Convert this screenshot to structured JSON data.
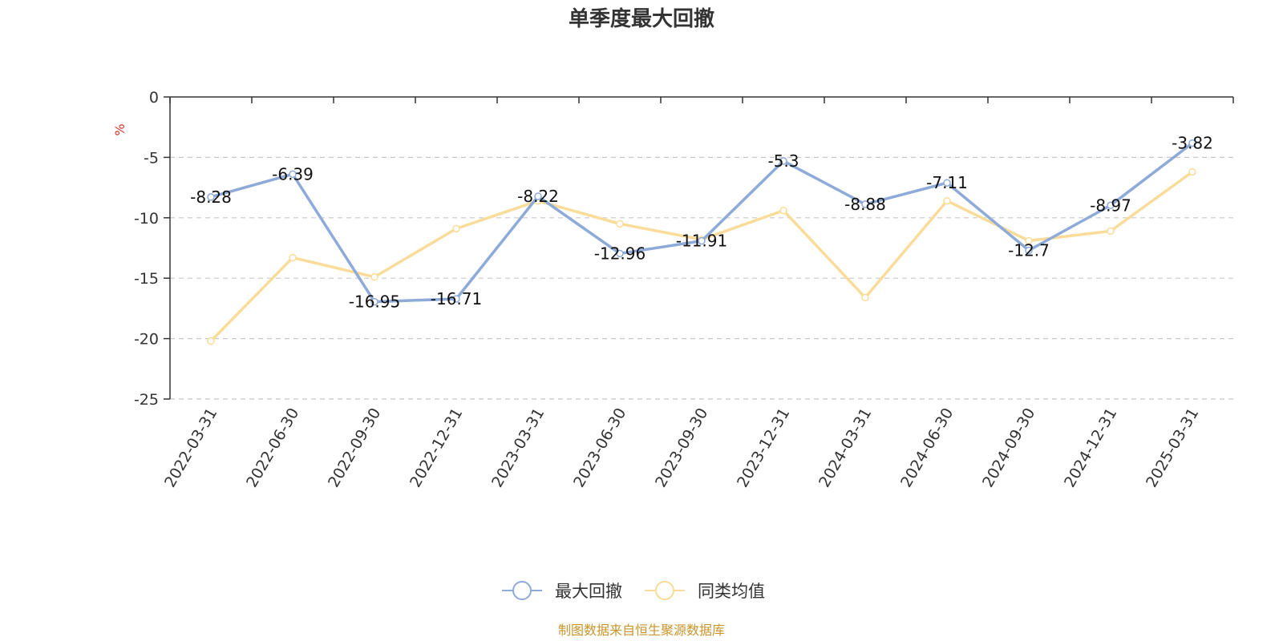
{
  "chart_data": {
    "type": "line",
    "title": "单季度最大回撤",
    "ylabel": "%",
    "xlabel": "",
    "categories": [
      "2022-03-31",
      "2022-06-30",
      "2022-09-30",
      "2022-12-31",
      "2023-03-31",
      "2023-06-30",
      "2023-09-30",
      "2023-12-31",
      "2024-03-31",
      "2024-06-30",
      "2024-09-30",
      "2024-12-31",
      "2025-03-31"
    ],
    "yticks": [
      0,
      -5,
      -10,
      -15,
      -20,
      -25
    ],
    "ylim": [
      -25,
      0
    ],
    "grid": true,
    "legend_position": "bottom",
    "series": [
      {
        "name": "最大回撤",
        "color": "#8eaad8",
        "values": [
          -8.28,
          -6.39,
          -16.95,
          -16.71,
          -8.22,
          -12.96,
          -11.91,
          -5.3,
          -8.88,
          -7.11,
          -12.7,
          -8.97,
          -3.82
        ],
        "labels": [
          "-8.28",
          "-6.39",
          "-16.95",
          "-16.71",
          "-8.22",
          "-12.96",
          "-11.91",
          "-5.3",
          "-8.88",
          "-7.11",
          "-12.7",
          "-8.97",
          "-3.82"
        ]
      },
      {
        "name": "同类均值",
        "color": "#f9dc9a",
        "values": [
          -20.2,
          -13.3,
          -14.9,
          -10.9,
          -8.6,
          -10.5,
          -11.8,
          -9.4,
          -16.6,
          -8.6,
          -11.9,
          -11.1,
          -6.2
        ]
      }
    ]
  },
  "source_text": "制图数据来自恒生聚源数据库"
}
